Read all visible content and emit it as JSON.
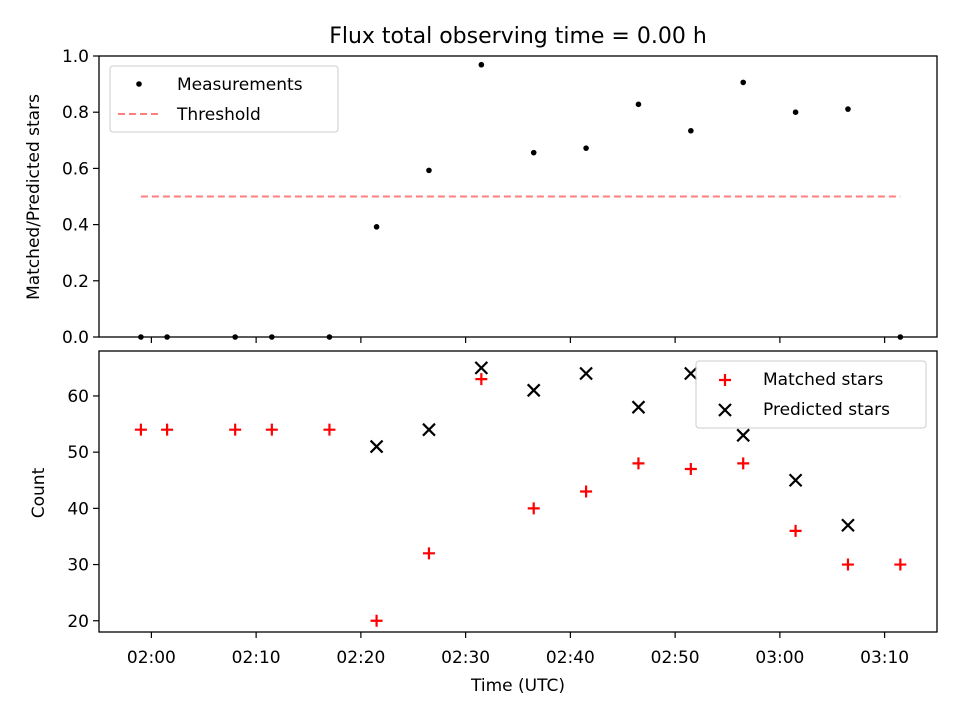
{
  "title": "Flux total observing time = 0.00 h",
  "chart_data": [
    {
      "type": "scatter",
      "ylabel": "Matched/Predicted stars",
      "ylim": [
        0,
        1.0
      ],
      "yticks": [
        "0.0",
        "0.2",
        "0.4",
        "0.6",
        "0.8",
        "1.0"
      ],
      "ytick_values": [
        0,
        0.2,
        0.4,
        0.6,
        0.8,
        1.0
      ],
      "legend_position": "upper left",
      "grid": false,
      "series": [
        {
          "name": "Measurements",
          "kind": "points",
          "color": "#000000",
          "x": [
            "01:59",
            "02:01:30",
            "02:08",
            "02:11:30",
            "02:17",
            "02:21:30",
            "02:26:30",
            "02:31:30",
            "02:36:30",
            "02:41:30",
            "02:46:30",
            "02:51:30",
            "02:56:30",
            "03:01:30",
            "03:06:30",
            "03:11:30"
          ],
          "y": [
            0.0,
            0.0,
            0.0,
            0.0,
            0.0,
            0.392,
            0.593,
            0.969,
            0.656,
            0.672,
            0.828,
            0.734,
            0.906,
            0.8,
            0.811,
            0.0
          ]
        },
        {
          "name": "Threshold",
          "kind": "dashed-line",
          "color": "#ff7f7f",
          "x": [
            "01:59",
            "03:11:30"
          ],
          "y": [
            0.5,
            0.5
          ]
        }
      ]
    },
    {
      "type": "scatter",
      "xlabel": "Time (UTC)",
      "ylabel": "Count",
      "ylim": [
        18,
        68
      ],
      "yticks": [
        "20",
        "30",
        "40",
        "50",
        "60"
      ],
      "ytick_values": [
        20,
        30,
        40,
        50,
        60
      ],
      "xticks": [
        "02:00",
        "02:10",
        "02:20",
        "02:30",
        "02:40",
        "02:50",
        "03:00",
        "03:10"
      ],
      "xtick_values": [
        "02:00",
        "02:10",
        "02:20",
        "02:30",
        "02:40",
        "02:50",
        "03:00",
        "03:10"
      ],
      "xlim": [
        "01:55",
        "03:15"
      ],
      "legend_position": "upper right",
      "grid": false,
      "series": [
        {
          "name": "Matched stars",
          "marker": "plus",
          "color": "#ff0000",
          "x": [
            "01:59",
            "02:01:30",
            "02:08",
            "02:11:30",
            "02:17",
            "02:21:30",
            "02:26:30",
            "02:31:30",
            "02:36:30",
            "02:41:30",
            "02:46:30",
            "02:51:30",
            "02:56:30",
            "03:01:30",
            "03:06:30",
            "03:11:30"
          ],
          "y": [
            54,
            54,
            54,
            54,
            54,
            20,
            32,
            63,
            40,
            43,
            48,
            47,
            48,
            36,
            30,
            30
          ]
        },
        {
          "name": "Predicted stars",
          "marker": "x",
          "color": "#000000",
          "x": [
            "02:21:30",
            "02:26:30",
            "02:31:30",
            "02:36:30",
            "02:41:30",
            "02:46:30",
            "02:51:30",
            "02:56:30",
            "03:01:30",
            "03:06:30"
          ],
          "y": [
            51,
            54,
            65,
            61,
            64,
            58,
            64,
            53,
            45,
            37
          ]
        }
      ]
    }
  ]
}
